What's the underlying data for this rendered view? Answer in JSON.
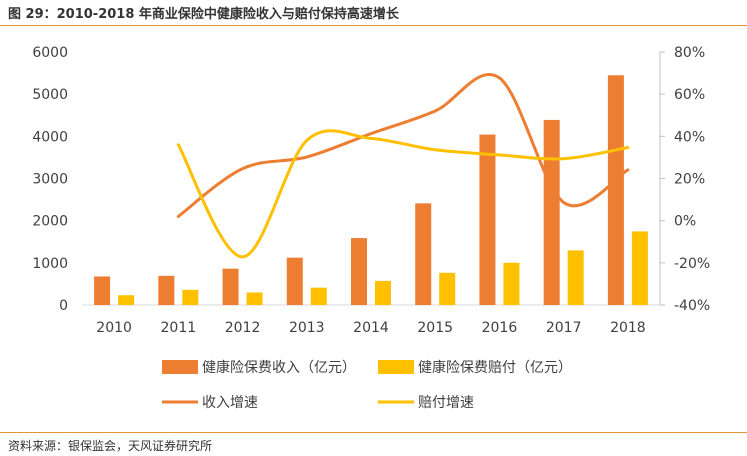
{
  "header": {
    "title": "图 29：2010-2018 年商业保险中健康险收入与赔付保持高速增长"
  },
  "footer": {
    "source": "资料来源：银保监会，天风证券研究所"
  },
  "chart_data": {
    "type": "bar",
    "categories": [
      "2010",
      "2011",
      "2012",
      "2013",
      "2014",
      "2015",
      "2016",
      "2017",
      "2018"
    ],
    "y_left": {
      "ylim": [
        0,
        6000
      ],
      "ticks": [
        "0",
        "1000",
        "2000",
        "3000",
        "4000",
        "5000",
        "6000"
      ]
    },
    "y_right": {
      "ylim": [
        -40,
        80
      ],
      "ticks": [
        "-40%",
        "-20%",
        "0%",
        "20%",
        "40%",
        "60%",
        "80%"
      ]
    },
    "series": [
      {
        "name": "健康险保费收入（亿元）",
        "kind": "bar",
        "axis": "left",
        "color": "#ed7d31",
        "values": [
          677,
          692,
          862,
          1123,
          1587,
          2410,
          4042,
          4389,
          5448
        ]
      },
      {
        "name": "健康险保费赔付（亿元）",
        "kind": "bar",
        "axis": "left",
        "color": "#ffc000",
        "values": [
          232,
          360,
          298,
          411,
          571,
          763,
          1001,
          1295,
          1744
        ]
      },
      {
        "name": "收入增速",
        "kind": "line",
        "axis": "right",
        "color": "#ed7d31",
        "values": [
          null,
          2,
          24.7,
          30.2,
          41.3,
          52,
          67.7,
          8.6,
          24.1
        ]
      },
      {
        "name": "赔付增速",
        "kind": "line",
        "axis": "right",
        "color": "#ffc000",
        "values": [
          null,
          36,
          -17.2,
          38,
          39,
          33.6,
          31.2,
          29.4,
          34.7
        ]
      }
    ],
    "legend_position": "bottom",
    "grid": false
  }
}
